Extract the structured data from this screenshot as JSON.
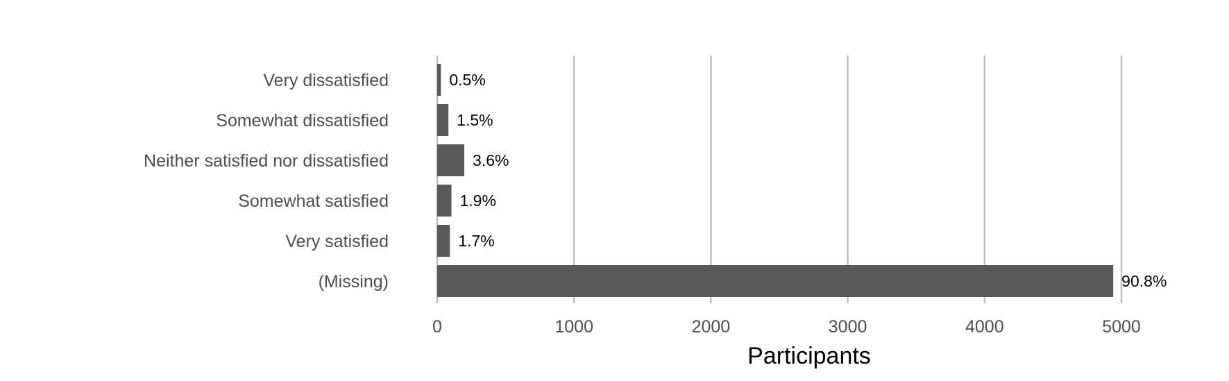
{
  "chart_data": {
    "type": "bar",
    "orientation": "horizontal",
    "categories": [
      "Very dissatisfied",
      "Somewhat dissatisfied",
      "Neither satisfied nor dissatisfied",
      "Somewhat satisfied",
      "Very satisfied",
      "(Missing)"
    ],
    "values": [
      27,
      82,
      198,
      104,
      93,
      4940
    ],
    "labels": [
      "0.5%",
      "1.5%",
      "3.6%",
      "1.9%",
      "1.7%",
      "90.8%"
    ],
    "xlabel": "Participants",
    "ylabel": "",
    "xlim": [
      0,
      5200
    ],
    "xticks": [
      0,
      1000,
      2000,
      3000,
      4000,
      5000
    ],
    "xtick_labels": [
      "0",
      "1000",
      "2000",
      "3000",
      "4000",
      "5000"
    ],
    "grid": "vertical",
    "colors": {
      "bar": "#595959",
      "grid": "#bebebe",
      "category_text": "#4d4d4d",
      "label_text": "#000000"
    }
  }
}
